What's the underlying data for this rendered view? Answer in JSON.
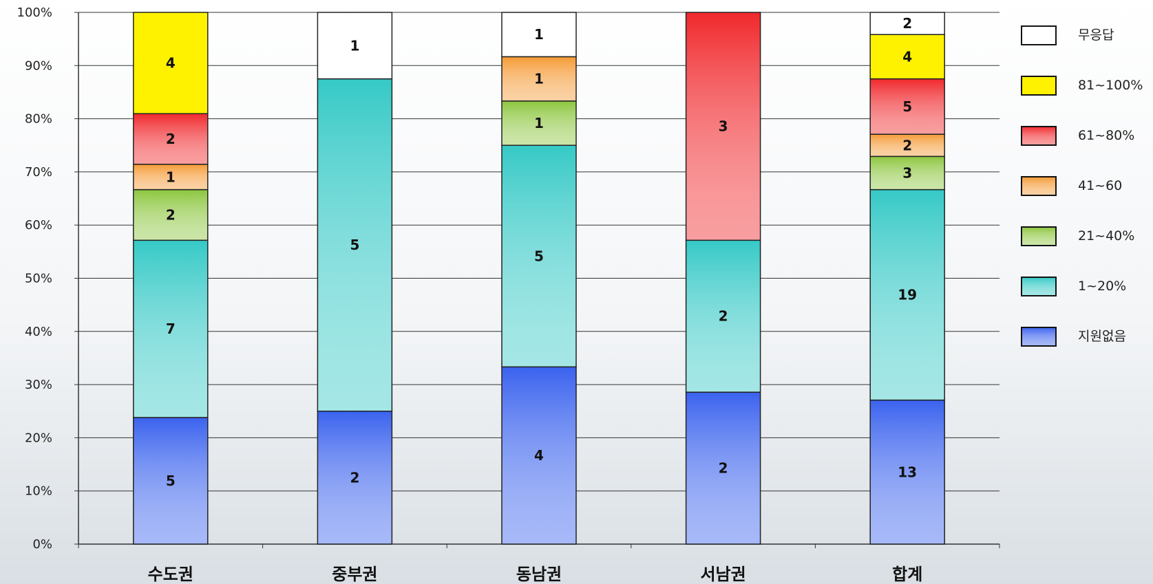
{
  "chart_data": {
    "type": "bar",
    "stacked": true,
    "percent": true,
    "categories": [
      "수도권",
      "중부권",
      "동남권",
      "서남권",
      "합계"
    ],
    "series": [
      {
        "name": "지원없음",
        "values": [
          5,
          2,
          4,
          2,
          13
        ],
        "color": "#3a62ee"
      },
      {
        "name": "1~20%",
        "values": [
          7,
          5,
          5,
          2,
          19
        ],
        "color": "#35c9c6"
      },
      {
        "name": "21~40%",
        "values": [
          2,
          0,
          1,
          0,
          3
        ],
        "color": "#8cc63e"
      },
      {
        "name": "41~60",
        "values": [
          1,
          0,
          1,
          0,
          2
        ],
        "color": "#f59a35"
      },
      {
        "name": "61~80%",
        "values": [
          2,
          0,
          0,
          3,
          5
        ],
        "color": "#f0282c"
      },
      {
        "name": "81~100%",
        "values": [
          4,
          0,
          0,
          0,
          4
        ],
        "color": "#fff200"
      },
      {
        "name": "무응답",
        "values": [
          0,
          1,
          1,
          0,
          2
        ],
        "color": "#ffffff"
      }
    ],
    "legend_order": [
      "무응답",
      "81~100%",
      "61~80%",
      "41~60",
      "21~40%",
      "1~20%",
      "지원없음"
    ],
    "yticks": [
      "0%",
      "10%",
      "20%",
      "30%",
      "40%",
      "50%",
      "60%",
      "70%",
      "80%",
      "90%",
      "100%"
    ],
    "ylim": [
      0,
      100
    ],
    "grid": true,
    "legend_position": "right"
  }
}
